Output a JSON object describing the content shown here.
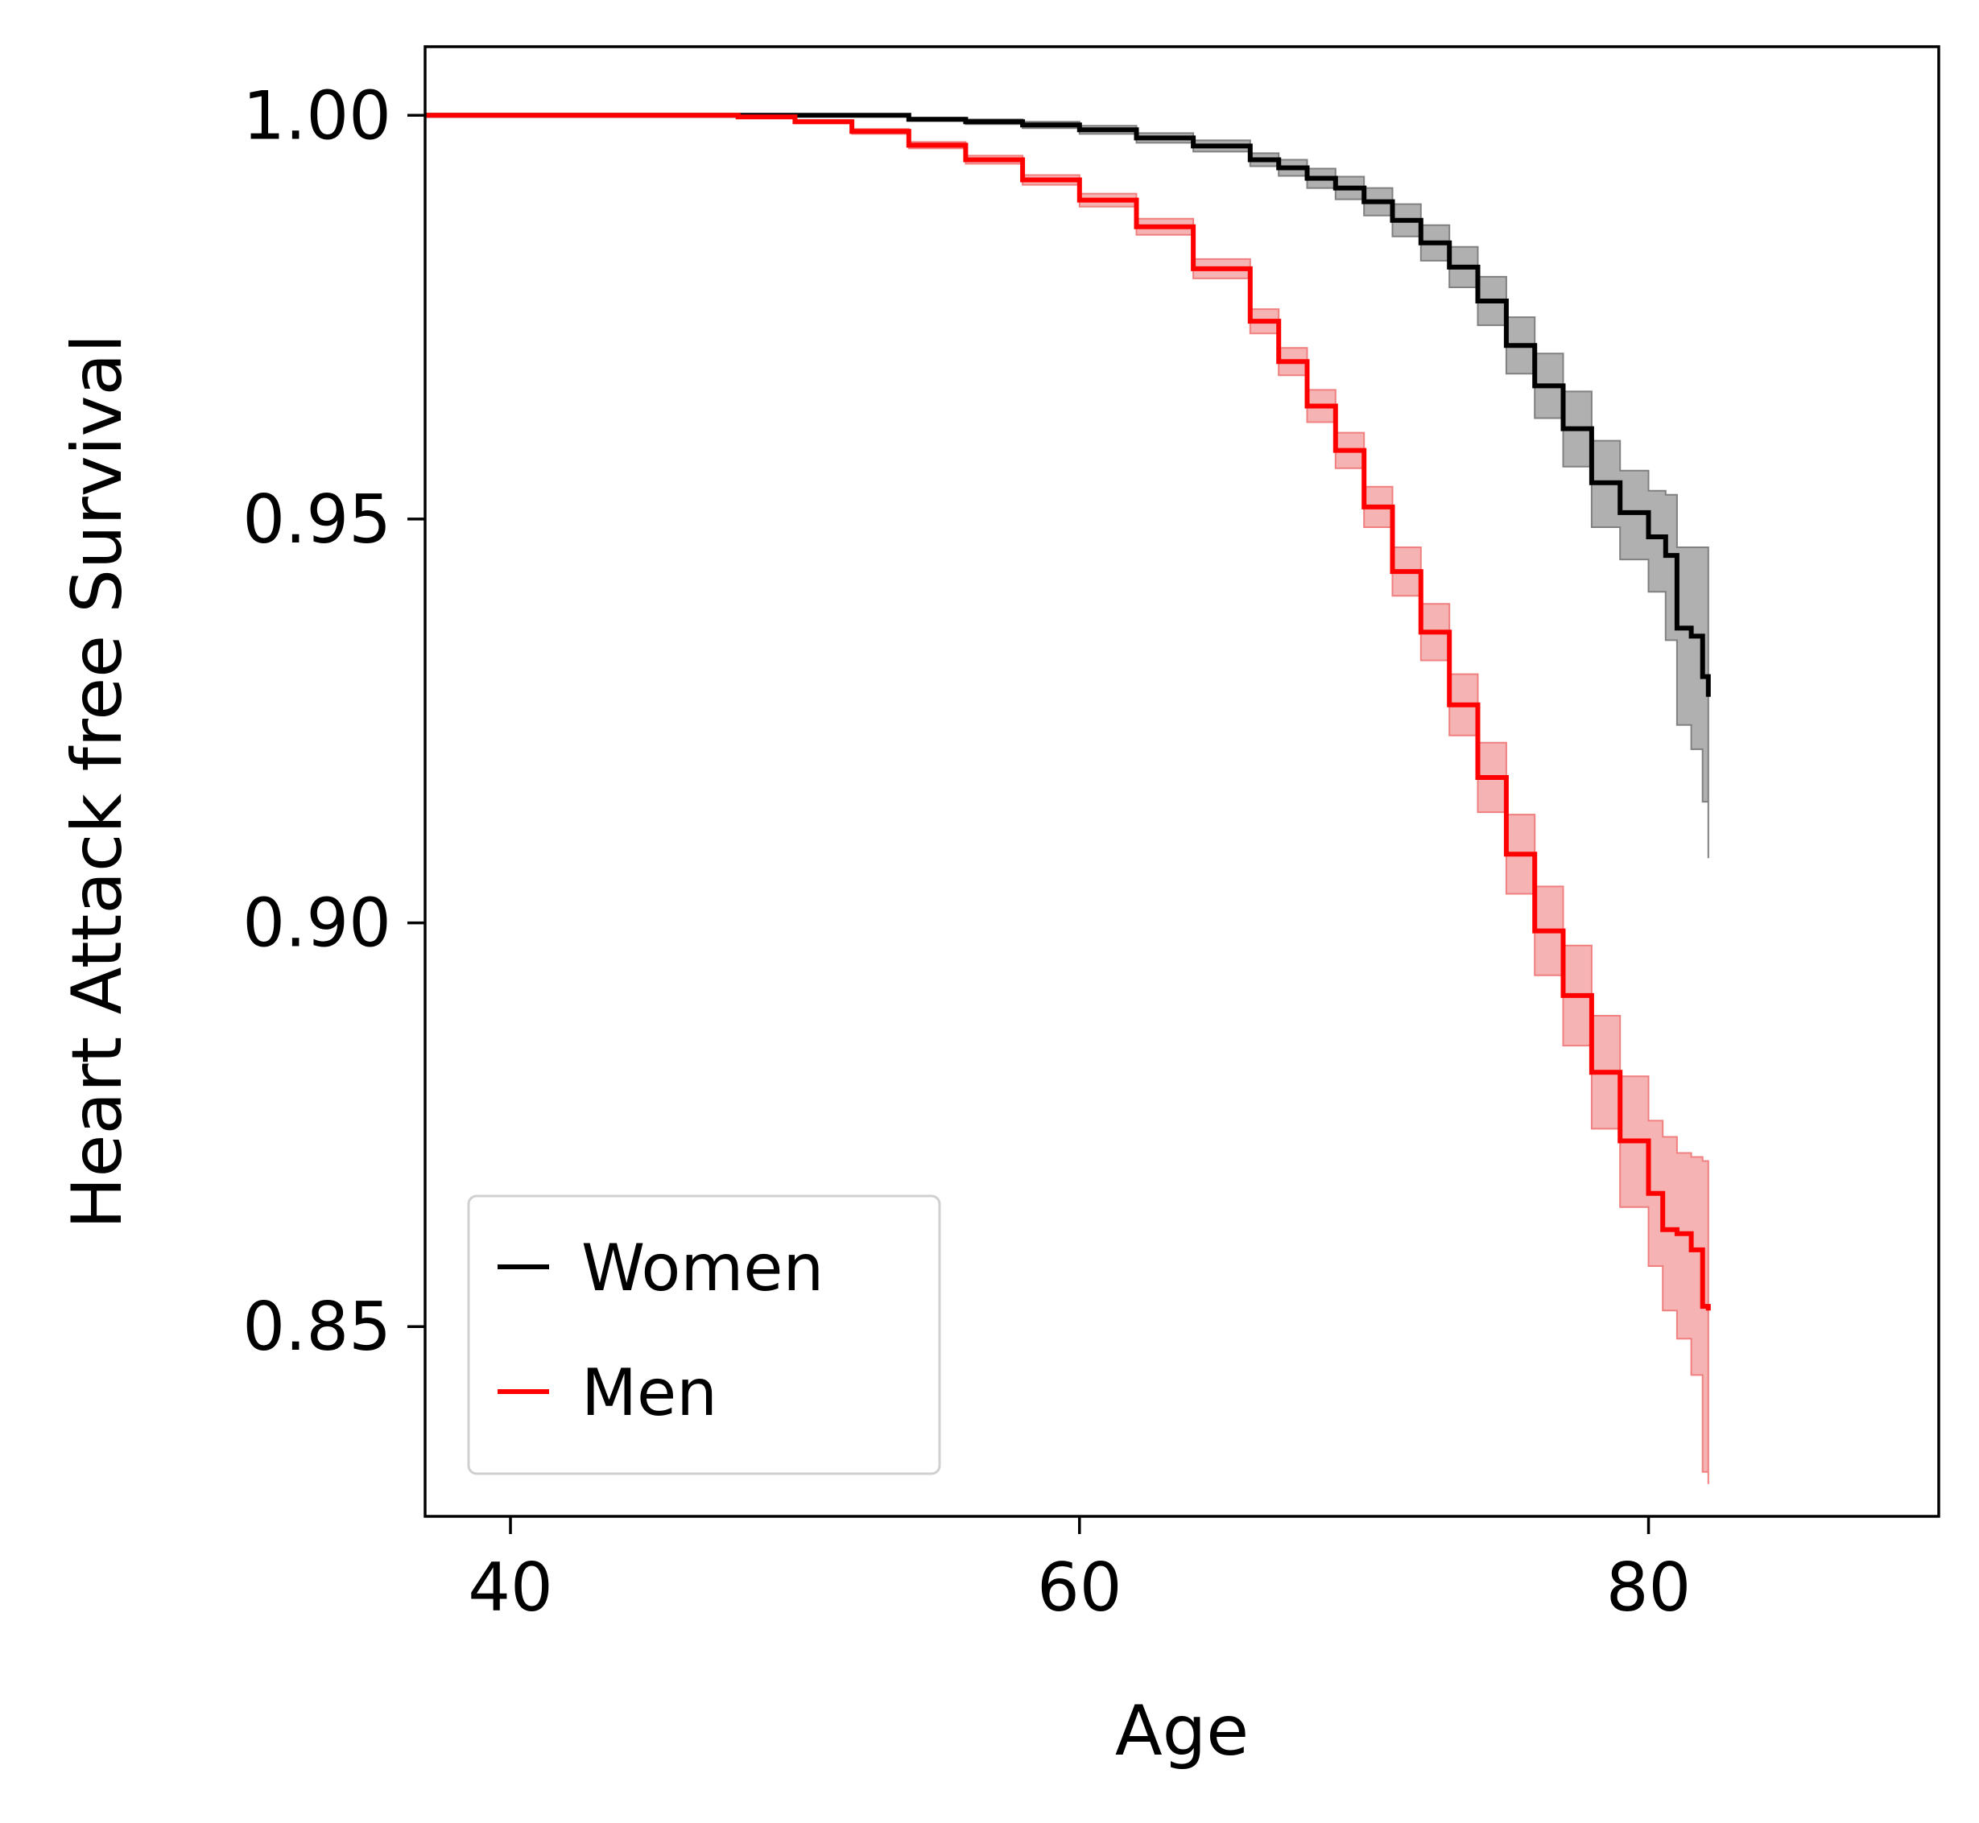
{
  "chart_data": {
    "type": "line",
    "title": "",
    "xlabel": "Age",
    "ylabel": "Heart Attack free Survival",
    "xlim": [
      37,
      90.2
    ],
    "ylim": [
      0.8265,
      1.0085
    ],
    "xticks": [
      {
        "value": 40,
        "label": "40"
      },
      {
        "value": 60,
        "label": "60"
      },
      {
        "value": 80,
        "label": "80"
      }
    ],
    "yticks": [
      {
        "value": 0.85,
        "label": "0.85"
      },
      {
        "value": 0.9,
        "label": "0.90"
      },
      {
        "value": 0.95,
        "label": "0.95"
      },
      {
        "value": 1.0,
        "label": "1.00"
      }
    ],
    "grid": false,
    "legend": {
      "position": "lower-left"
    },
    "series": [
      {
        "name": "Women",
        "color": "#000000",
        "band_color": "#808080",
        "x": [
          37,
          45,
          50,
          54,
          56,
          58,
          60,
          62,
          64,
          66,
          67,
          68,
          69,
          70,
          71,
          72,
          73,
          74,
          75,
          76,
          77,
          78,
          79,
          80,
          80.6,
          81,
          81.5,
          81.9,
          82.1
        ],
        "y": [
          1.0,
          1.0,
          1.0,
          0.9995,
          0.9992,
          0.9988,
          0.9982,
          0.9972,
          0.9962,
          0.9945,
          0.9935,
          0.9922,
          0.991,
          0.9893,
          0.987,
          0.9842,
          0.9812,
          0.977,
          0.9715,
          0.9665,
          0.9612,
          0.9545,
          0.9508,
          0.9478,
          0.9455,
          0.9365,
          0.9355,
          0.9305,
          0.928
        ],
        "lower": [
          1.0,
          1.0,
          1.0,
          0.9993,
          0.9989,
          0.9984,
          0.9977,
          0.9966,
          0.9955,
          0.9937,
          0.9925,
          0.991,
          0.9896,
          0.9876,
          0.985,
          0.982,
          0.9787,
          0.974,
          0.968,
          0.9625,
          0.9565,
          0.949,
          0.945,
          0.941,
          0.935,
          0.9245,
          0.9215,
          0.915,
          0.908
        ],
        "upper": [
          1.0,
          1.0,
          1.0,
          0.9997,
          0.9995,
          0.9992,
          0.9987,
          0.9978,
          0.9969,
          0.9953,
          0.9945,
          0.9934,
          0.9924,
          0.991,
          0.989,
          0.9864,
          0.9837,
          0.98,
          0.975,
          0.9705,
          0.9658,
          0.9597,
          0.956,
          0.9535,
          0.953,
          0.9465,
          0.9465,
          0.9465,
          0.9465
        ]
      },
      {
        "name": "Men",
        "color": "#ff0000",
        "band_color": "#f08080",
        "x": [
          37,
          45,
          48,
          50,
          52,
          54,
          56,
          58,
          60,
          62,
          64,
          66,
          67,
          68,
          69,
          70,
          71,
          72,
          73,
          74,
          75,
          76,
          77,
          78,
          79,
          80,
          80.5,
          81,
          81.5,
          81.9,
          82.1
        ],
        "y": [
          1.0,
          1.0,
          0.9998,
          0.9992,
          0.998,
          0.9963,
          0.9945,
          0.992,
          0.9895,
          0.9862,
          0.981,
          0.9745,
          0.9695,
          0.964,
          0.9585,
          0.9515,
          0.9435,
          0.936,
          0.927,
          0.918,
          0.9085,
          0.899,
          0.891,
          0.8815,
          0.873,
          0.8665,
          0.862,
          0.8615,
          0.8595,
          0.8525,
          0.852
        ],
        "lower": [
          1.0,
          1.0,
          0.9997,
          0.999,
          0.9977,
          0.9959,
          0.994,
          0.9914,
          0.9887,
          0.9852,
          0.9798,
          0.973,
          0.9678,
          0.962,
          0.9563,
          0.949,
          0.9405,
          0.9325,
          0.9232,
          0.9137,
          0.9036,
          0.8935,
          0.8848,
          0.8745,
          0.8648,
          0.8575,
          0.852,
          0.8485,
          0.844,
          0.832,
          0.8305
        ],
        "upper": [
          1.0,
          1.0,
          0.9999,
          0.9994,
          0.9983,
          0.9967,
          0.995,
          0.9926,
          0.9903,
          0.9872,
          0.9822,
          0.976,
          0.9712,
          0.966,
          0.9607,
          0.954,
          0.9465,
          0.9395,
          0.9308,
          0.9223,
          0.9134,
          0.9045,
          0.8972,
          0.8885,
          0.881,
          0.8755,
          0.8735,
          0.8715,
          0.871,
          0.8705,
          0.8705
        ]
      }
    ]
  }
}
